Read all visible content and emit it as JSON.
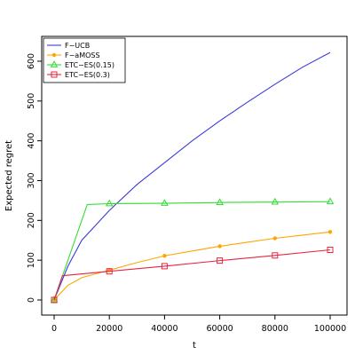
{
  "chart_data": {
    "type": "line",
    "title": "",
    "xlabel": "t",
    "ylabel": "Expected regret",
    "xlim": [
      0,
      100000
    ],
    "ylim": [
      0,
      620
    ],
    "xticks": [
      0,
      20000,
      40000,
      60000,
      80000,
      100000
    ],
    "xtick_labels": [
      "0",
      "20000",
      "40000",
      "60000",
      "80000",
      "100000"
    ],
    "yticks": [
      0,
      100,
      200,
      300,
      400,
      500,
      600
    ],
    "ytick_labels": [
      "0",
      "100",
      "200",
      "300",
      "400",
      "500",
      "600"
    ],
    "grid": false,
    "legend_position": "top-left",
    "series": [
      {
        "name": "F−UCB",
        "color": "#3b3bdc",
        "marker": "none",
        "x": [
          0,
          5000,
          10000,
          20000,
          30000,
          40000,
          50000,
          60000,
          70000,
          80000,
          90000,
          100000
        ],
        "y": [
          0,
          85,
          150,
          225,
          290,
          345,
          400,
          450,
          497,
          542,
          585,
          622
        ]
      },
      {
        "name": "F−aMOSS",
        "color": "#ffa500",
        "marker": "dot",
        "x": [
          0,
          5000,
          10000,
          20000,
          30000,
          40000,
          50000,
          60000,
          70000,
          80000,
          90000,
          100000
        ],
        "y": [
          0,
          37,
          56,
          75,
          94,
          111,
          123,
          135,
          145,
          155,
          163,
          171
        ],
        "marker_x": [
          0,
          20000,
          40000,
          60000,
          80000,
          100000
        ],
        "marker_y": [
          0,
          75,
          111,
          135,
          155,
          171
        ]
      },
      {
        "name": "ETC−ES(0.15)",
        "color": "#33dd33",
        "marker": "triangle",
        "x": [
          0,
          12000,
          20000,
          40000,
          60000,
          80000,
          100000
        ],
        "y": [
          0,
          240,
          242,
          243,
          245,
          246,
          247
        ],
        "marker_x": [
          0,
          20000,
          40000,
          60000,
          80000,
          100000
        ],
        "marker_y": [
          0,
          242,
          243,
          245,
          246,
          247
        ]
      },
      {
        "name": "ETC−ES(0.3)",
        "color": "#e8253f",
        "marker": "square",
        "x": [
          0,
          3000,
          20000,
          40000,
          60000,
          80000,
          100000
        ],
        "y": [
          0,
          61,
          72,
          85,
          99,
          112,
          126
        ],
        "marker_x": [
          0,
          20000,
          40000,
          60000,
          80000,
          100000
        ],
        "marker_y": [
          0,
          72,
          85,
          99,
          112,
          126
        ]
      }
    ]
  }
}
